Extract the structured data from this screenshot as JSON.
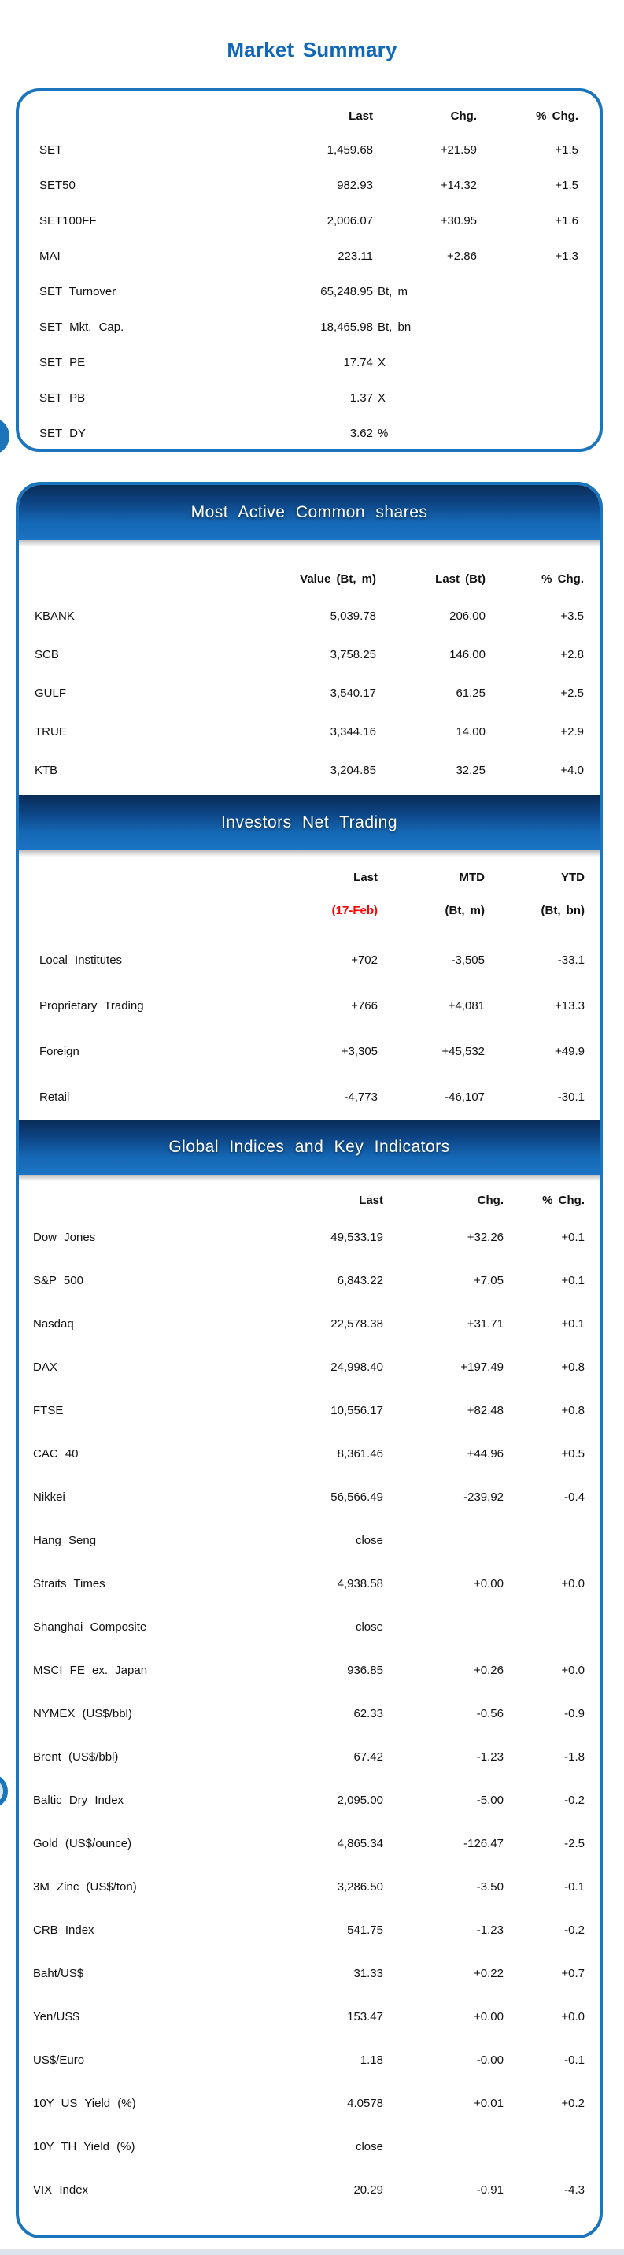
{
  "page": {
    "title": "Market Summary"
  },
  "colors": {
    "accent_blue": "#1B75BC",
    "title_blue": "#1068B7",
    "banner_gradient_top": "#0A2C57",
    "banner_gradient_bottom": "#1B74C4",
    "date_red": "#FF0000",
    "footer_strip": "#DDE3EA"
  },
  "market_summary": {
    "headers": [
      "Last",
      "Chg.",
      "% Chg."
    ],
    "rows": [
      {
        "label": "SET",
        "last": "1,459.68",
        "unit": "",
        "chg": "+21.59",
        "pct": "+1.5"
      },
      {
        "label": "SET50",
        "last": "982.93",
        "unit": "",
        "chg": "+14.32",
        "pct": "+1.5"
      },
      {
        "label": "SET100FF",
        "last": "2,006.07",
        "unit": "",
        "chg": "+30.95",
        "pct": "+1.6"
      },
      {
        "label": "MAI",
        "last": "223.11",
        "unit": "",
        "chg": "+2.86",
        "pct": "+1.3"
      },
      {
        "label": "SET Turnover",
        "last": "65,248.95",
        "unit": "Bt, m",
        "chg": "",
        "pct": ""
      },
      {
        "label": "SET Mkt. Cap.",
        "last": "18,465.98",
        "unit": "Bt, bn",
        "chg": "",
        "pct": ""
      },
      {
        "label": "SET PE",
        "last": "17.74",
        "unit": "X",
        "chg": "",
        "pct": ""
      },
      {
        "label": "SET PB",
        "last": "1.37",
        "unit": "X",
        "chg": "",
        "pct": ""
      },
      {
        "label": "SET DY",
        "last": "3.62",
        "unit": "%",
        "chg": "",
        "pct": ""
      }
    ]
  },
  "most_active": {
    "title": "Most Active Common shares",
    "headers": [
      "Value (Bt, m)",
      "Last (Bt)",
      "% Chg."
    ],
    "rows": [
      {
        "label": "KBANK",
        "value": "5,039.78",
        "last": "206.00",
        "pct": "+3.5"
      },
      {
        "label": "SCB",
        "value": "3,758.25",
        "last": "146.00",
        "pct": "+2.8"
      },
      {
        "label": "GULF",
        "value": "3,540.17",
        "last": "61.25",
        "pct": "+2.5"
      },
      {
        "label": "TRUE",
        "value": "3,344.16",
        "last": "14.00",
        "pct": "+2.9"
      },
      {
        "label": "KTB",
        "value": "3,204.85",
        "last": "32.25",
        "pct": "+4.0"
      }
    ]
  },
  "investors": {
    "title": "Investors Net Trading",
    "headers": [
      {
        "line1": "Last",
        "line2": "(17-Feb)"
      },
      {
        "line1": "MTD",
        "line2": "(Bt, m)"
      },
      {
        "line1": "YTD",
        "line2": "(Bt, bn)"
      }
    ],
    "rows": [
      {
        "label": "Local Institutes",
        "last": "+702",
        "mtd": "-3,505",
        "ytd": "-33.1"
      },
      {
        "label": "Proprietary Trading",
        "last": "+766",
        "mtd": "+4,081",
        "ytd": "+13.3"
      },
      {
        "label": "Foreign",
        "last": "+3,305",
        "mtd": "+45,532",
        "ytd": "+49.9"
      },
      {
        "label": "Retail",
        "last": "-4,773",
        "mtd": "-46,107",
        "ytd": "-30.1"
      }
    ]
  },
  "global_indices": {
    "title": "Global Indices and Key Indicators",
    "headers": [
      "Last",
      "Chg.",
      "% Chg."
    ],
    "rows": [
      {
        "label": "Dow Jones",
        "last": "49,533.19",
        "chg": "+32.26",
        "pct": "+0.1"
      },
      {
        "label": "S&P 500",
        "last": "6,843.22",
        "chg": "+7.05",
        "pct": "+0.1"
      },
      {
        "label": "Nasdaq",
        "last": "22,578.38",
        "chg": "+31.71",
        "pct": "+0.1"
      },
      {
        "label": "DAX",
        "last": "24,998.40",
        "chg": "+197.49",
        "pct": "+0.8"
      },
      {
        "label": "FTSE",
        "last": "10,556.17",
        "chg": "+82.48",
        "pct": "+0.8"
      },
      {
        "label": "CAC 40",
        "last": "8,361.46",
        "chg": "+44.96",
        "pct": "+0.5"
      },
      {
        "label": "Nikkei",
        "last": "56,566.49",
        "chg": "-239.92",
        "pct": "-0.4"
      },
      {
        "label": "Hang Seng",
        "last": "close",
        "chg": "",
        "pct": ""
      },
      {
        "label": "Straits Times",
        "last": "4,938.58",
        "chg": "+0.00",
        "pct": "+0.0"
      },
      {
        "label": "Shanghai Composite",
        "last": "close",
        "chg": "",
        "pct": ""
      },
      {
        "label": "MSCI FE ex. Japan",
        "last": "936.85",
        "chg": "+0.26",
        "pct": "+0.0"
      },
      {
        "label": "NYMEX (US$/bbl)",
        "last": "62.33",
        "chg": "-0.56",
        "pct": "-0.9"
      },
      {
        "label": "Brent (US$/bbl)",
        "last": "67.42",
        "chg": "-1.23",
        "pct": "-1.8"
      },
      {
        "label": "Baltic Dry Index",
        "last": "2,095.00",
        "chg": "-5.00",
        "pct": "-0.2"
      },
      {
        "label": "Gold (US$/ounce)",
        "last": "4,865.34",
        "chg": "-126.47",
        "pct": "-2.5"
      },
      {
        "label": "3M Zinc (US$/ton)",
        "last": "3,286.50",
        "chg": "-3.50",
        "pct": "-0.1"
      },
      {
        "label": "CRB Index",
        "last": "541.75",
        "chg": "-1.23",
        "pct": "-0.2"
      },
      {
        "label": "Baht/US$",
        "last": "31.33",
        "chg": "+0.22",
        "pct": "+0.7"
      },
      {
        "label": "Yen/US$",
        "last": "153.47",
        "chg": "+0.00",
        "pct": "+0.0"
      },
      {
        "label": "US$/Euro",
        "last": "1.18",
        "chg": "-0.00",
        "pct": "-0.1"
      },
      {
        "label": "10Y US Yield (%)",
        "last": "4.0578",
        "chg": "+0.01",
        "pct": "+0.2"
      },
      {
        "label": "10Y TH Yield (%)",
        "last": "close",
        "chg": "",
        "pct": ""
      },
      {
        "label": "VIX Index",
        "last": "20.29",
        "chg": "-0.91",
        "pct": "-4.3"
      }
    ]
  }
}
